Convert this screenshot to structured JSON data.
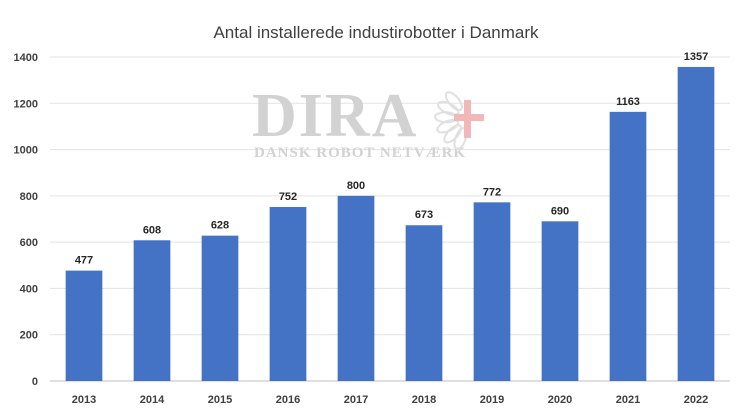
{
  "chart_data": {
    "type": "bar",
    "title": "Antal installerede industirobotter i Danmark",
    "categories": [
      "2013",
      "2014",
      "2015",
      "2016",
      "2017",
      "2018",
      "2019",
      "2020",
      "2021",
      "2022"
    ],
    "values": [
      477,
      608,
      628,
      752,
      800,
      673,
      772,
      690,
      1163,
      1357
    ],
    "xlabel": "",
    "ylabel": "",
    "ylim": [
      0,
      1400
    ],
    "yticks": [
      0,
      200,
      400,
      600,
      800,
      1000,
      1200,
      1400
    ],
    "grid": true,
    "legend": "none",
    "bar_color": "#4472c4",
    "data_labels": true
  },
  "watermark": {
    "logo_text": "DIRA",
    "tagline": "DANSK ROBOT NETVÆRK",
    "color": "#d2d2d2",
    "accent_color": "#f2b8b8"
  }
}
